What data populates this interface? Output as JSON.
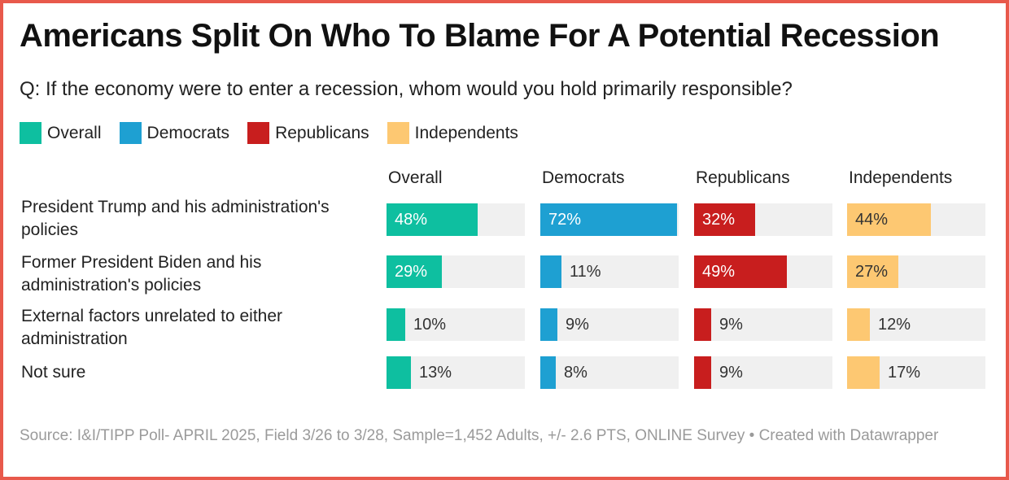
{
  "title": "Americans Split On Who To Blame For A Potential Recession",
  "subtitle": "Q: If the economy were to enter a recession, whom would you hold primarily responsible?",
  "footer": "Source: I&I/TIPP Poll- APRIL 2025, Field 3/26 to 3/28, Sample=1,452 Adults, +/- 2.6 PTS, ONLINE Survey • Created with Datawrapper",
  "chart_data": {
    "type": "bar",
    "orientation": "horizontal",
    "layout": "small-multiples",
    "xlim": [
      0,
      100
    ],
    "unit": "%",
    "legend_position": "top-left",
    "categories": [
      "President Trump and his administration's policies",
      "Former President Biden and his administration's policies",
      "External factors unrelated to either administration",
      "Not sure"
    ],
    "series": [
      {
        "name": "Overall",
        "color": "#0ebfa0",
        "label_color_inside": "#ffffff",
        "values": [
          48,
          29,
          10,
          13
        ]
      },
      {
        "name": "Democrats",
        "color": "#1ea0d2",
        "label_color_inside": "#ffffff",
        "values": [
          72,
          11,
          9,
          8
        ]
      },
      {
        "name": "Republicans",
        "color": "#c81e1e",
        "label_color_inside": "#ffffff",
        "values": [
          32,
          49,
          9,
          9
        ]
      },
      {
        "name": "Independents",
        "color": "#fdc872",
        "label_color_inside": "#333333",
        "values": [
          44,
          27,
          12,
          17
        ]
      }
    ]
  }
}
